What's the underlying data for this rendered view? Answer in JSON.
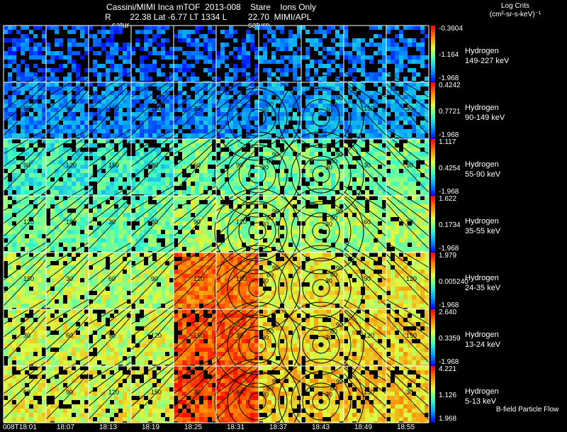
{
  "header": {
    "line1": "Cassini/MIMI Inca mTOF  2013-008    Stare    Ions Only",
    "line2": "R        22.38 Lat -6.77 LT 1334 L         22.70  MIMI/APL",
    "saturn_left": "satur",
    "saturn_right": "saturn"
  },
  "units": {
    "line1": "Log Cnts",
    "line2": "(cm²-sr-s-keV)⁻¹"
  },
  "rows": [
    {
      "species": "Hydrogen",
      "energy": "149-227 keV",
      "cmax": "-0.3604",
      "cmid": "-1.164",
      "cmin": "-1.968"
    },
    {
      "species": "Hydrogen",
      "energy": "90-149 keV",
      "cmax": "0.4242",
      "cmid": "0.7721",
      "cmin": "-1.968"
    },
    {
      "species": "Hydrogen",
      "energy": "55-90 keV",
      "cmax": "1.117",
      "cmid": "0.4254",
      "cmin": "-1.968"
    },
    {
      "species": "Hydrogen",
      "energy": "35-55 keV",
      "cmax": "1.622",
      "cmid": "0.1734",
      "cmin": "-1.968"
    },
    {
      "species": "Hydrogen",
      "energy": "24-35 keV",
      "cmax": "1.979",
      "cmid": "0.005240",
      "cmin": "-1.968"
    },
    {
      "species": "Hydrogen",
      "energy": "13-24 keV",
      "cmax": "2.640",
      "cmid": "0.3359",
      "cmin": "-1.968"
    },
    {
      "species": "Hydrogen",
      "energy": "5-13 keV",
      "cmax": "4.221",
      "cmid": "1.126",
      "cmin": "1.968"
    }
  ],
  "times": [
    "008T18:01",
    "18:07",
    "18:13",
    "18:19",
    "18:25",
    "18:31",
    "18:37",
    "18:43",
    "18:49",
    "18:55"
  ],
  "footer": {
    "flow_label": "B-field Particle Flow"
  },
  "contour_labels": [
    "30",
    "60",
    "90",
    "120",
    "150"
  ],
  "colors": {
    "background": "#000000",
    "grid": "#ffffff",
    "contour": "#000000"
  }
}
